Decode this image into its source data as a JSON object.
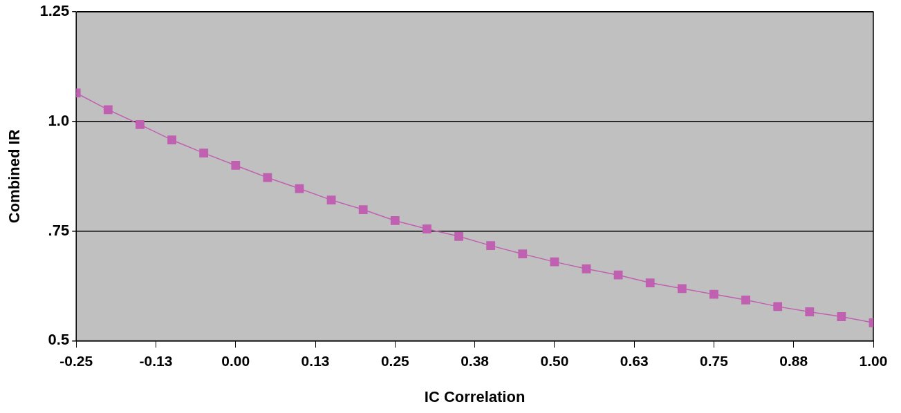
{
  "chart_data": {
    "type": "line",
    "xlabel": "IC Correlation",
    "ylabel": "Combined IR",
    "x": [
      -0.25,
      -0.2,
      -0.15,
      -0.1,
      -0.05,
      0,
      0.05,
      0.1,
      0.15,
      0.2,
      0.25,
      0.3,
      0.35,
      0.4,
      0.45,
      0.5,
      0.55,
      0.6,
      0.65,
      0.7,
      0.75,
      0.8,
      0.85,
      0.9,
      0.95,
      1
    ],
    "series": [
      {
        "color": "#c060b0",
        "values": [
          1.065,
          1.027,
          0.993,
          0.958,
          0.928,
          0.9,
          0.872,
          0.847,
          0.821,
          0.799,
          0.774,
          0.755,
          0.738,
          0.717,
          0.698,
          0.68,
          0.664,
          0.65,
          0.632,
          0.619,
          0.606,
          0.593,
          0.578,
          0.566,
          0.555,
          0.541
        ]
      }
    ],
    "xlim": [
      -0.25,
      1
    ],
    "xticks": [
      -0.25,
      {
        "value": -0.125,
        "label": "-0.13"
      },
      {
        "value": 0,
        "label": "0.00"
      },
      {
        "value": 0.125,
        "label": "0.13"
      },
      0.25,
      {
        "value": 0.375,
        "label": "0.38"
      },
      {
        "value": 0.5,
        "label": "0.50"
      },
      {
        "value": 0.625,
        "label": "0.63"
      },
      {
        "value": 0.75,
        "label": "0.75"
      },
      {
        "value": 0.875,
        "label": "0.88"
      },
      {
        "value": 1,
        "label": "1.00"
      }
    ],
    "ylim": [
      0.5,
      1.25
    ],
    "yticks": [
      {
        "value": 0.5,
        "label": "0.5"
      },
      {
        "value": 0.75,
        "label": ".75"
      },
      {
        "value": 1,
        "label": "1.0"
      },
      1.25
    ],
    "grid": "y",
    "legend": false,
    "marker": "square",
    "line_style": "solid"
  }
}
